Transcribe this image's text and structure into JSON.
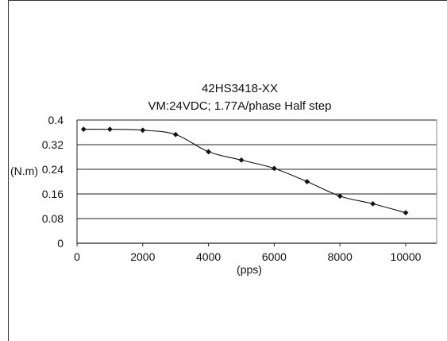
{
  "chart_data": {
    "type": "line",
    "title": "42HS3418-XX",
    "subtitle": "VM:24VDC; 1.77A/phase  Half step",
    "xlabel": "(pps)",
    "ylabel": "(N.m)",
    "xlim": [
      0,
      10000
    ],
    "ylim": [
      0,
      0.4
    ],
    "xticks": [
      "0",
      "2000",
      "4000",
      "6000",
      "8000",
      "10000"
    ],
    "yticks": [
      "0",
      "0.08",
      "0.16",
      "0.24",
      "0.32",
      "0.4"
    ],
    "grid": "horizontal",
    "series": [
      {
        "x": [
          200,
          1000,
          2000,
          3000,
          4000,
          5000,
          6000,
          7000,
          8000,
          9000,
          10000
        ],
        "y": [
          0.37,
          0.37,
          0.367,
          0.353,
          0.297,
          0.27,
          0.243,
          0.2,
          0.153,
          0.128,
          0.099
        ]
      }
    ],
    "line_color": "#111111",
    "grid_color": "#222222"
  }
}
